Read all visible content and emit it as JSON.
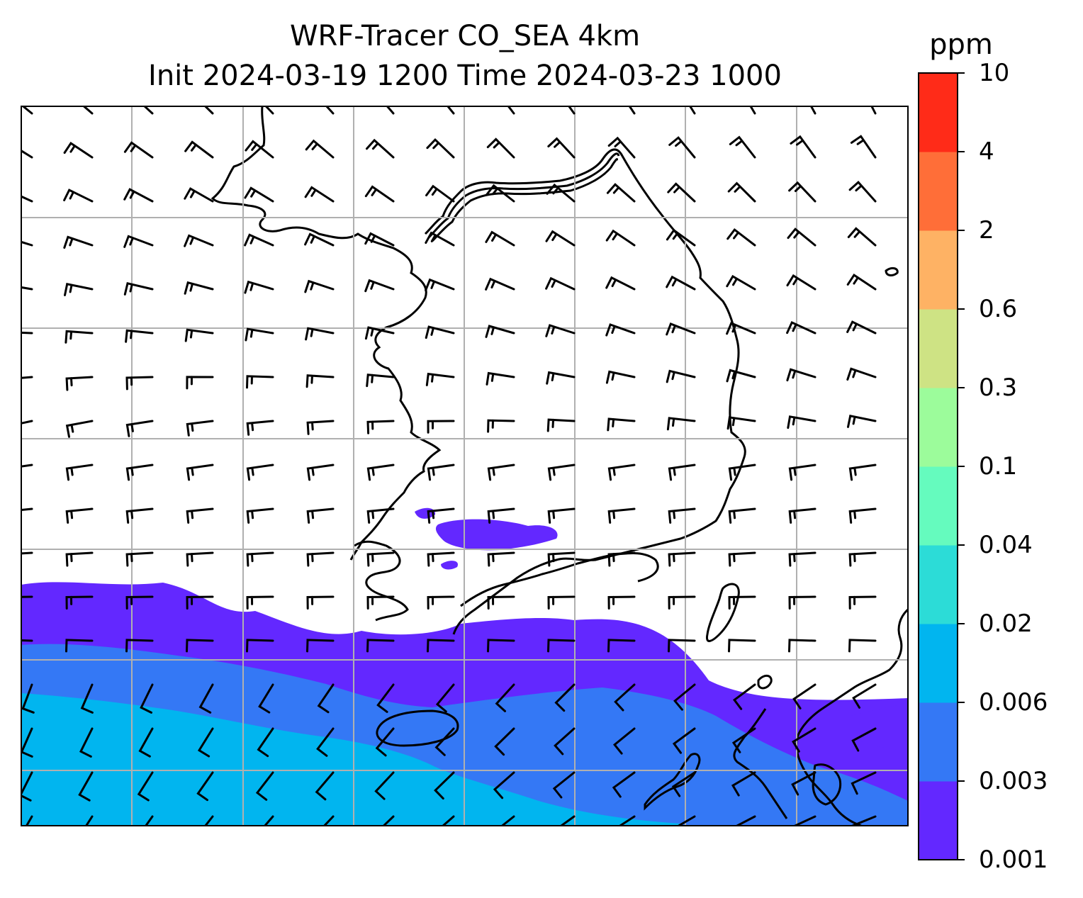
{
  "title": {
    "line1": "WRF-Tracer CO_SEA 4km",
    "line2": "Init 2024-03-19 1200 Time 2024-03-23 1000"
  },
  "colorbar": {
    "unit": "ppm",
    "levels": [
      "0.001",
      "0.003",
      "0.006",
      "0.02",
      "0.04",
      "0.1",
      "0.3",
      "0.6",
      "2",
      "4",
      "10"
    ],
    "colors": [
      "#6328ff",
      "#3478f5",
      "#01b5ef",
      "#2cdcd7",
      "#65fbbe",
      "#9cfc9b",
      "#cee384",
      "#feb264",
      "#ff6e38",
      "#ff2b18"
    ]
  },
  "map": {
    "fill_levels_shown": [
      "0.001",
      "0.003",
      "0.006"
    ],
    "wind_barbs": true,
    "gridlines": true,
    "coastlines": true
  }
}
